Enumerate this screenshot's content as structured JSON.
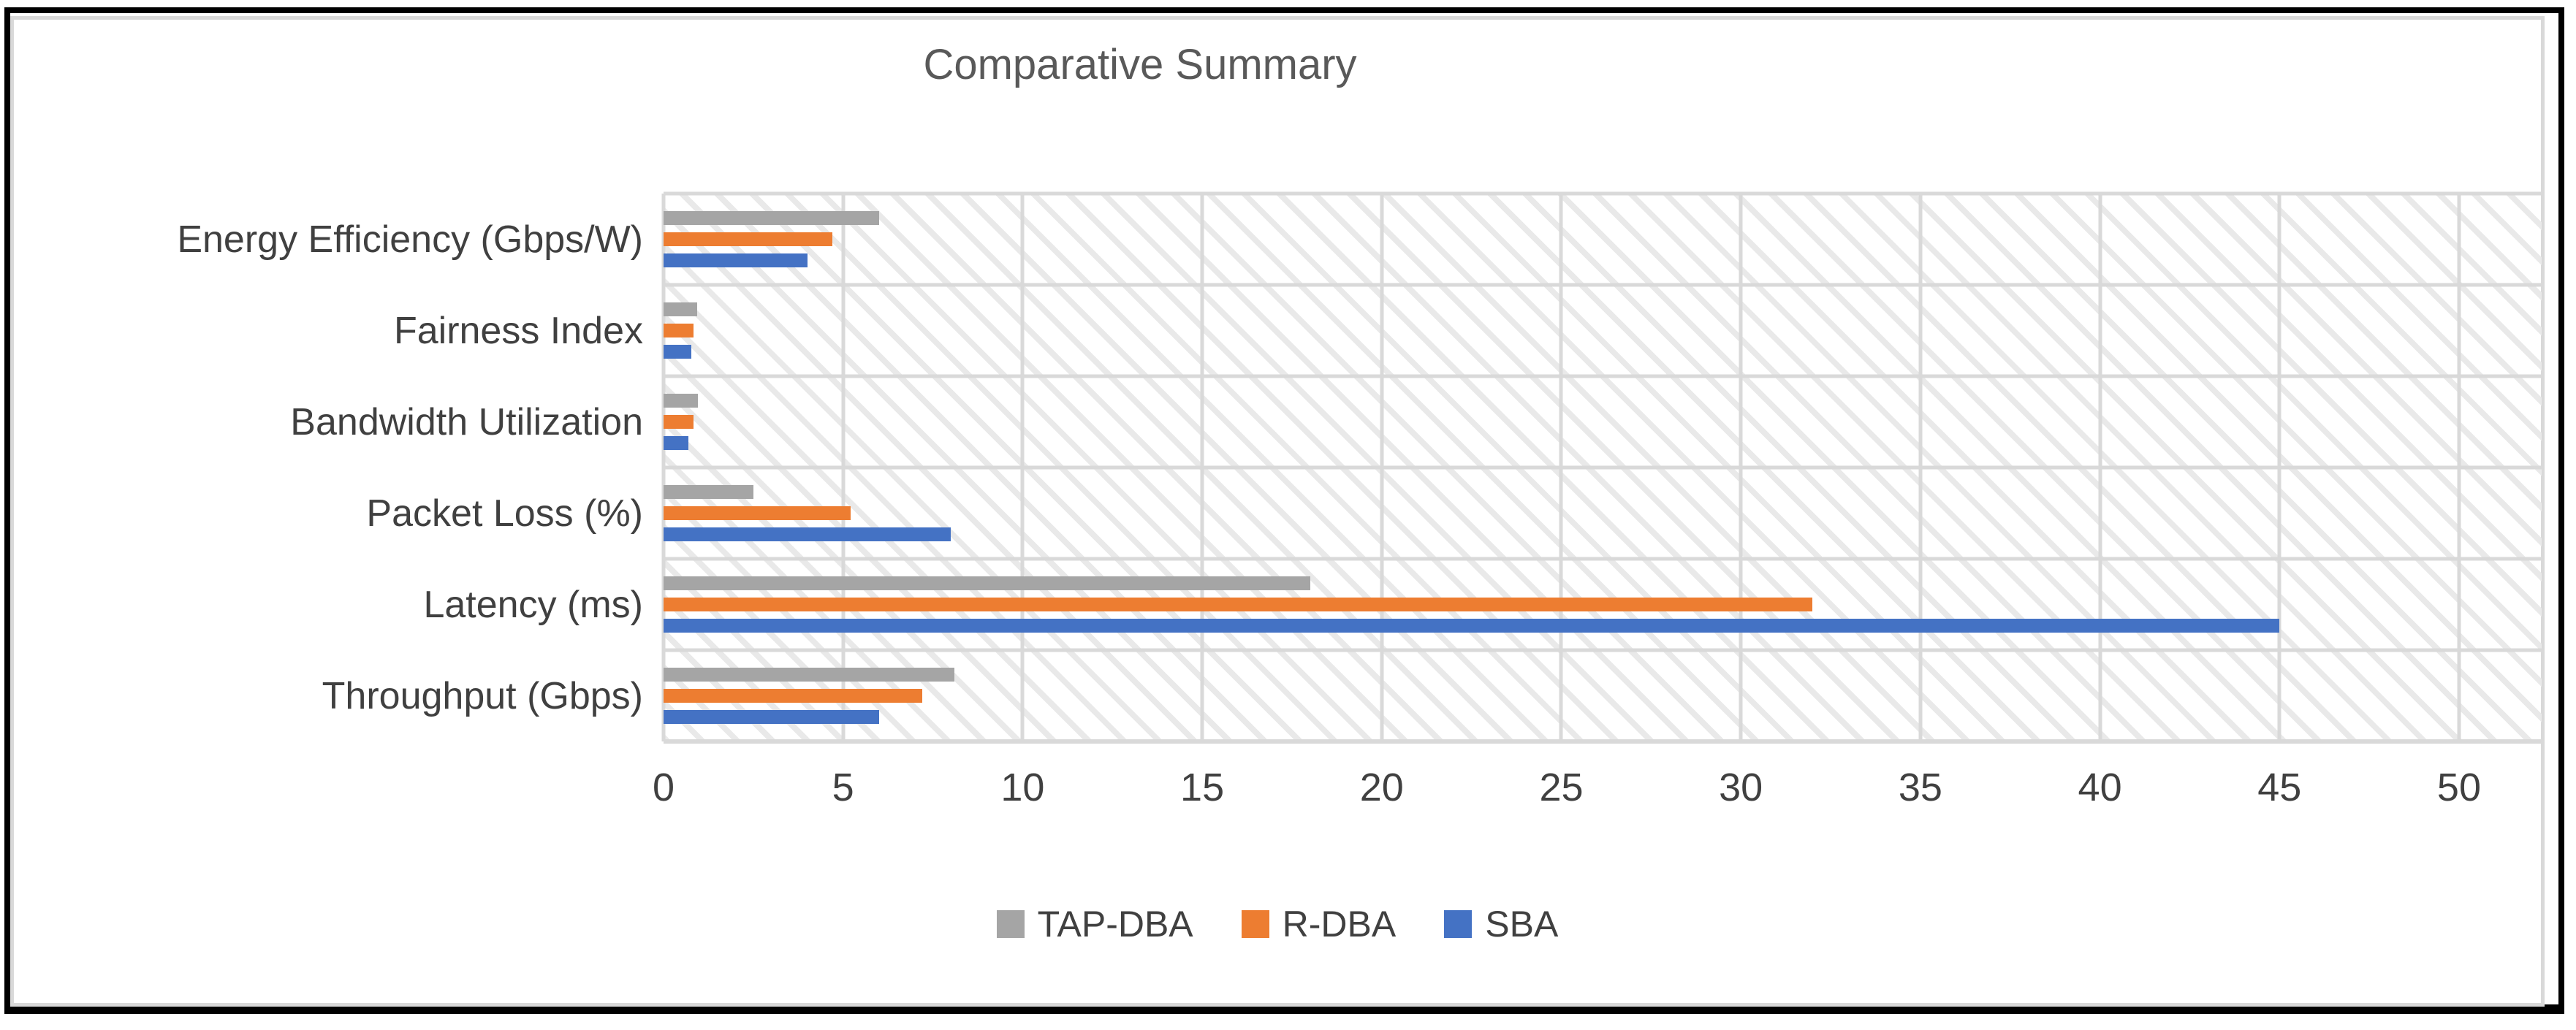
{
  "title": "Comparative Summary",
  "chart_data": {
    "type": "bar",
    "orientation": "horizontal",
    "title": "Comparative Summary",
    "categories": [
      "Energy Efficiency (Gbps/W)",
      "Fairness Index",
      "Bandwidth Utilization",
      "Packet Loss (%)",
      "Latency (ms)",
      "Throughput (Gbps)"
    ],
    "series": [
      {
        "name": "TAP-DBA",
        "color": "#A5A5A5",
        "values": [
          6.0,
          0.93,
          0.95,
          2.5,
          18,
          8.1
        ]
      },
      {
        "name": "R-DBA",
        "color": "#ED7D31",
        "values": [
          4.7,
          0.84,
          0.84,
          5.2,
          32,
          7.2
        ]
      },
      {
        "name": "SBA",
        "color": "#4472C4",
        "values": [
          4.0,
          0.78,
          0.7,
          8.0,
          45,
          6.0
        ]
      }
    ],
    "xlabel": "",
    "ylabel": "",
    "x_ticks": [
      0,
      5,
      10,
      15,
      20,
      25,
      30,
      35,
      40,
      45,
      50
    ],
    "xlim": [
      0,
      52.3
    ],
    "grid": true,
    "legend_position": "bottom",
    "plot_background": "light-diagonal-hatch",
    "gridline_color": "#D9D9D9",
    "title_color": "#595959",
    "label_color": "#404040"
  }
}
